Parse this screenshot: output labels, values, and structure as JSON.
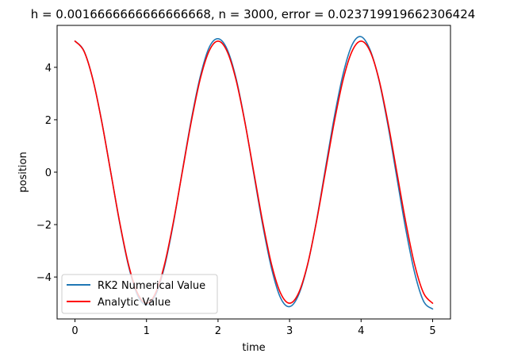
{
  "chart_data": {
    "type": "line",
    "title": "h = 0.0016666666666666668, n = 3000, error = 0.023719919662306424",
    "xlabel": "time",
    "ylabel": "position",
    "xlim": [
      -0.25,
      5.25
    ],
    "ylim": [
      -5.6,
      5.6
    ],
    "x_ticks": [
      0,
      1,
      2,
      3,
      4,
      5
    ],
    "x_tick_labels": [
      "0",
      "1",
      "2",
      "3",
      "4",
      "5"
    ],
    "y_ticks": [
      -4,
      -2,
      0,
      2,
      4
    ],
    "y_tick_labels": [
      "−4",
      "−2",
      "0",
      "2",
      "4"
    ],
    "grid": false,
    "legend_position": "lower-left",
    "series": [
      {
        "name": "RK2 Numerical Value",
        "color": "#1f77b4",
        "x": [
          0,
          0.125,
          0.25,
          0.375,
          0.5,
          0.625,
          0.75,
          0.875,
          1.0,
          1.125,
          1.25,
          1.375,
          1.5,
          1.625,
          1.75,
          1.875,
          2.0,
          2.125,
          2.25,
          2.375,
          2.5,
          2.625,
          2.75,
          2.875,
          3.0,
          3.125,
          3.25,
          3.375,
          3.5,
          3.625,
          3.75,
          3.875,
          4.0,
          4.125,
          4.25,
          4.375,
          4.5,
          4.625,
          4.75,
          4.875,
          5.0
        ],
        "y": [
          5.0,
          4.63,
          3.54,
          1.92,
          0.0,
          -1.94,
          -3.59,
          -4.7,
          -5.06,
          -4.7,
          -3.62,
          -1.96,
          0.03,
          1.98,
          3.63,
          4.75,
          5.09,
          4.7,
          3.6,
          1.93,
          -0.06,
          -2.02,
          -3.69,
          -4.8,
          -5.13,
          -4.69,
          -3.56,
          -1.88,
          0.11,
          2.09,
          3.76,
          4.86,
          5.17,
          4.67,
          3.51,
          1.8,
          -0.2,
          -2.18,
          -3.85,
          -4.93,
          -5.22
        ]
      },
      {
        "name": "Analytic Value",
        "color": "#ff0000",
        "x": [
          0,
          0.125,
          0.25,
          0.375,
          0.5,
          0.625,
          0.75,
          0.875,
          1.0,
          1.125,
          1.25,
          1.375,
          1.5,
          1.625,
          1.75,
          1.875,
          2.0,
          2.125,
          2.25,
          2.375,
          2.5,
          2.625,
          2.75,
          2.875,
          3.0,
          3.125,
          3.25,
          3.375,
          3.5,
          3.625,
          3.75,
          3.875,
          4.0,
          4.125,
          4.25,
          4.375,
          4.5,
          4.625,
          4.75,
          4.875,
          5.0
        ],
        "y": [
          5.0,
          4.62,
          3.54,
          1.91,
          0.0,
          -1.91,
          -3.54,
          -4.62,
          -5.0,
          -4.62,
          -3.54,
          -1.91,
          0.0,
          1.91,
          3.54,
          4.62,
          5.0,
          4.62,
          3.54,
          1.91,
          0.0,
          -1.91,
          -3.54,
          -4.62,
          -5.0,
          -4.62,
          -3.54,
          -1.91,
          0.0,
          1.91,
          3.54,
          4.62,
          5.0,
          4.62,
          3.54,
          1.91,
          0.0,
          -1.91,
          -3.54,
          -4.62,
          -5.0
        ]
      }
    ]
  }
}
